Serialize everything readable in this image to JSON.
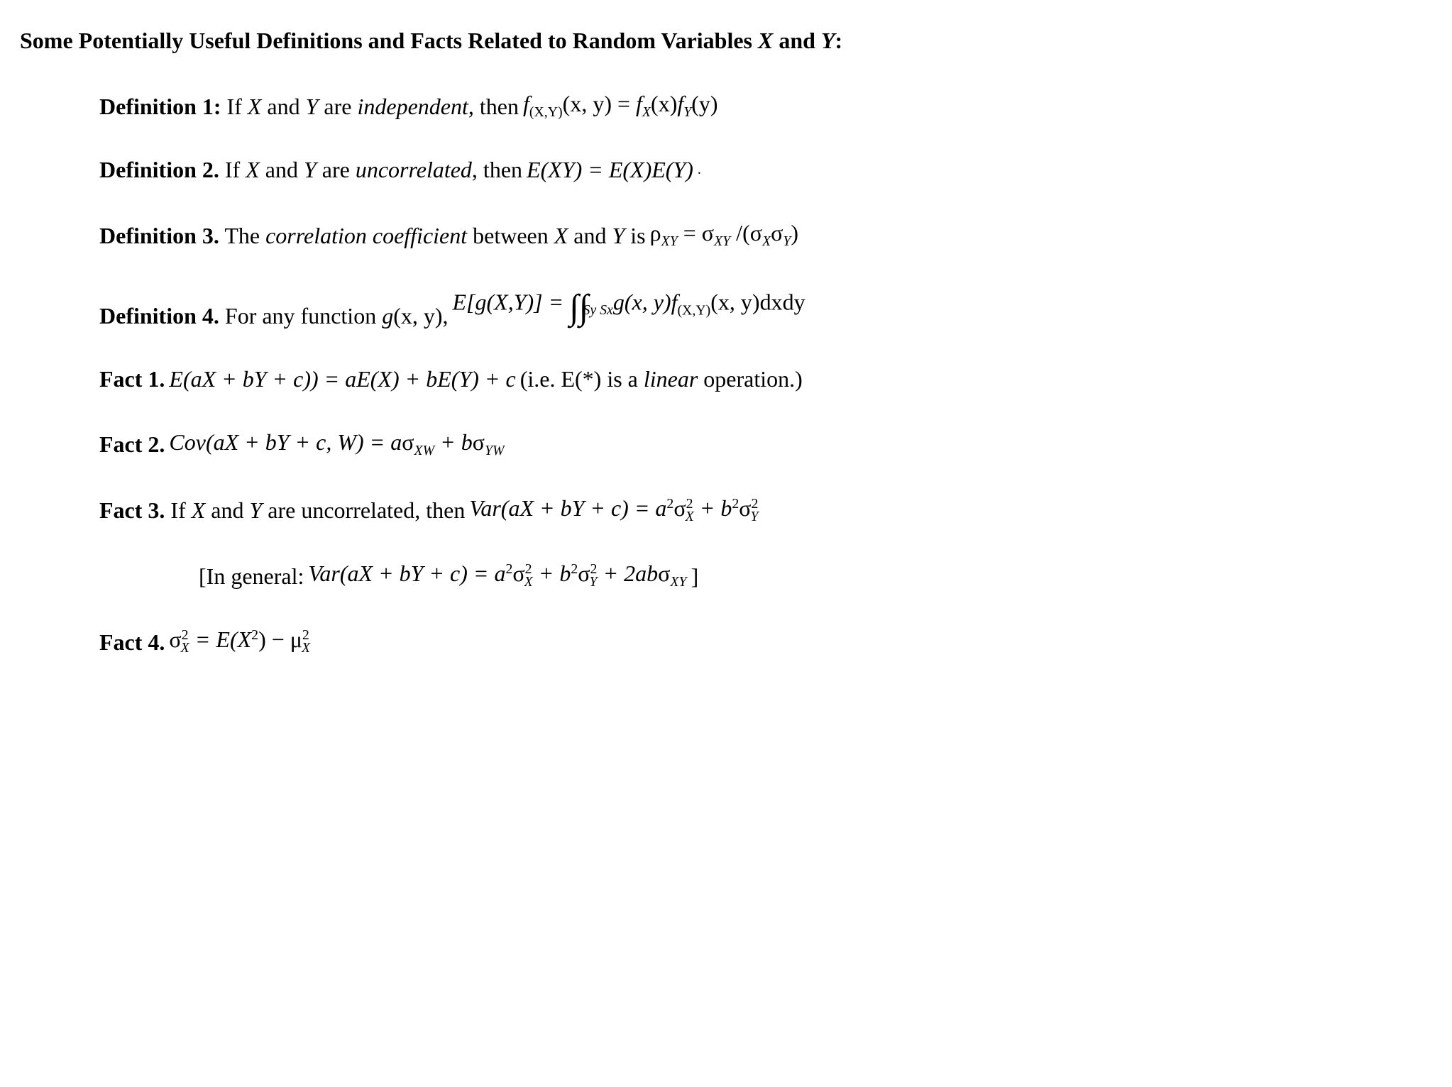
{
  "colors": {
    "text": "#000000",
    "background": "#ffffff"
  },
  "typography": {
    "font_family": "Times New Roman",
    "base_fontsize_pt": 24,
    "heading_weight": "bold"
  },
  "heading": {
    "pre": "Some Potentially Useful Definitions and Facts Related to Random Variables ",
    "X": "X",
    "and": " and ",
    "Y": "Y",
    "post": ":"
  },
  "def1": {
    "label": "Definition 1:",
    "pre": "  If ",
    "X": "X",
    "mid1": " and ",
    "Y": "Y",
    "mid2": " are ",
    "ital": "independent",
    "mid3": ", then  ",
    "eq": {
      "f": "f",
      "sub1": "(X,Y)",
      "args1": "(x, y) = ",
      "f2": "f",
      "sub2": "X",
      "args2": "(x)",
      "f3": "f",
      "sub3": "Y",
      "args3": "(y)"
    }
  },
  "def2": {
    "label": "Definition 2.",
    "pre": " If ",
    "X": "X",
    "mid1": " and ",
    "Y": "Y",
    "mid2": " are ",
    "ital": "uncorrelated",
    "mid3": ", then  ",
    "eq": "E(XY) = E(X)E(Y)",
    "period": "."
  },
  "def3": {
    "label": "Definition 3.",
    "pre": " The ",
    "ital": "correlation coefficient",
    "mid1": " between ",
    "X": "X",
    "mid2": " and ",
    "Y": "Y",
    "mid3": " is  ",
    "eq": {
      "rho": "ρ",
      "sub1": "XY",
      "eq": " = ",
      "sig1": "σ",
      "sub2": "XY",
      "slash": " /(",
      "sig2": "σ",
      "sub3": "X",
      "sig3": "σ",
      "sub4": "Y",
      "close": ")"
    }
  },
  "def4": {
    "label": "Definition 4.",
    "pre": " For any function  ",
    "g": "g",
    "gargs": "(x, y)",
    "comma": ",   ",
    "eq": {
      "lhs": "E[g(X,Y)] = ",
      "int": "∫∫",
      "intsub": "Sy Sx",
      "body": "g(x, y)f",
      "fsub": "(X,Y)",
      "fargs": "(x, y)dxdy"
    }
  },
  "fact1": {
    "label": "Fact 1.",
    "eq": " E(aX + bY + c)) = aE(X) + bE(Y) + c ",
    "note_pre": " (i.e. E(*) is a ",
    "note_ital": "linear",
    "note_post": " operation.)"
  },
  "fact2": {
    "label": "Fact 2.",
    "eq": {
      "lhs": " Cov(aX + bY + c, W) = a",
      "sig1": "σ",
      "sub1": "XW",
      "plus": " + b",
      "sig2": "σ",
      "sub2": "YW"
    }
  },
  "fact3": {
    "label": "Fact 3.",
    "pre": " If ",
    "X": "X",
    "mid1": " and ",
    "Y": "Y",
    "mid2": " are uncorrelated, then  ",
    "eq": {
      "lhs": "Var(aX + bY + c) = a",
      "sup1": "2",
      "sig1": "σ",
      "sigsup1": "2",
      "sigsub1": "X",
      "plus": " + b",
      "sup2": "2",
      "sig2": "σ",
      "sigsup2": "2",
      "sigsub2": "Y"
    }
  },
  "fact3_general": {
    "pre": "[In general:  ",
    "eq": {
      "lhs": "Var(aX + bY + c) = a",
      "sup1": "2",
      "sig1": "σ",
      "sigsup1": "2",
      "sigsub1": "X",
      "plus1": " + b",
      "sup2": "2",
      "sig2": "σ",
      "sigsup2": "2",
      "sigsub2": "Y",
      "plus2": " + 2ab",
      "sig3": "σ",
      "sigsub3": "XY"
    },
    "post": "  ]"
  },
  "fact4": {
    "label": "Fact 4.",
    "eq": {
      "sig": " σ",
      "sup1": "2",
      "sub1": "X",
      "eq": " = E(X",
      "sup2": "2",
      "close": ") − ",
      "mu": "μ",
      "sup3": "2",
      "sub3": "X"
    }
  }
}
